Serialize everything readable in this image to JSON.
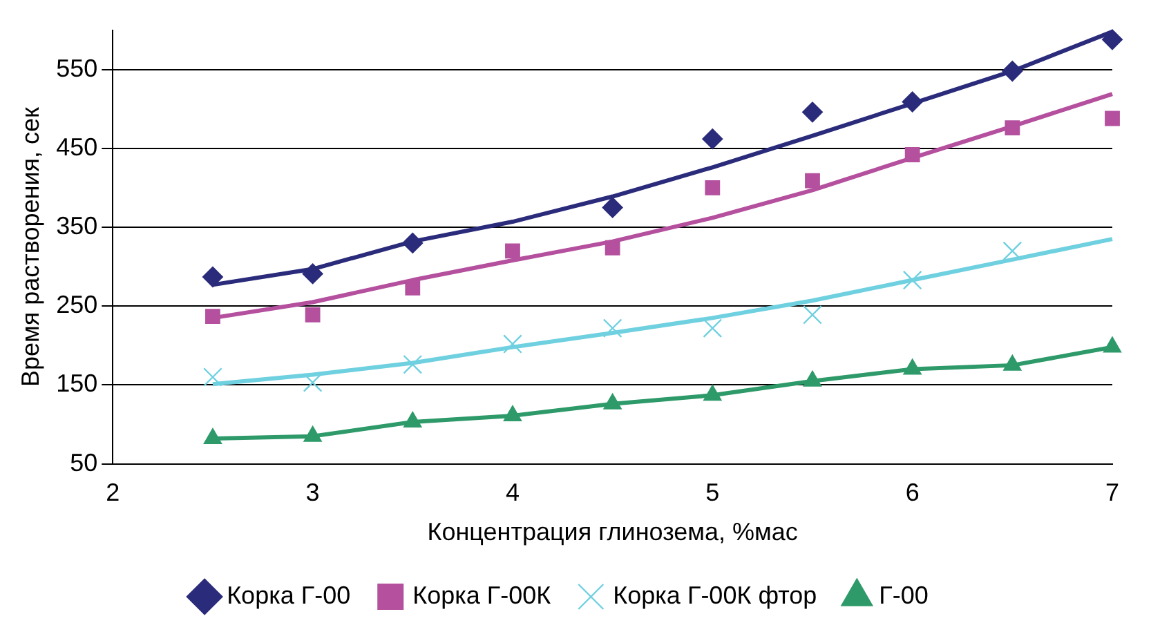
{
  "chart_data": {
    "type": "scatter",
    "xlabel": "Концентрация глинозема, %мас",
    "ylabel": "Время растворения, сек",
    "x": [
      2.5,
      3,
      3.5,
      4,
      4.5,
      5,
      5.5,
      6,
      6.5,
      7
    ],
    "xlim": [
      2,
      7
    ],
    "xticks": [
      2,
      3,
      4,
      5,
      6,
      7
    ],
    "ylim": [
      50,
      600
    ],
    "yticks": [
      50,
      150,
      250,
      350,
      450,
      550
    ],
    "grid": "y",
    "legend": "bottom",
    "series": [
      {
        "name": "Корка Г-00",
        "type": "scatter",
        "marker": "diamond",
        "color": "#2b2b7b",
        "values": [
          287,
          291,
          330,
          null,
          375,
          462,
          496,
          509,
          548,
          588
        ]
      },
      {
        "name": "Корка Г-00К",
        "type": "scatter",
        "marker": "square",
        "color": "#b4509e",
        "values": [
          237,
          239,
          273,
          320,
          324,
          400,
          409,
          442,
          476,
          488
        ]
      },
      {
        "name": "Корка Г-00К фтор",
        "type": "scatter",
        "marker": "cross",
        "color": "#6fd0e0",
        "values": [
          160,
          153,
          176,
          202,
          222,
          222,
          239,
          283,
          320,
          null
        ]
      },
      {
        "name": "Г-00",
        "type": "line",
        "marker": "triangle",
        "color": "#2e9a6a",
        "values": [
          82,
          85,
          103,
          111,
          126,
          137,
          155,
          170,
          175,
          198
        ]
      },
      {
        "type": "line",
        "marker": "none",
        "color": "#2b2b7b",
        "values": [
          277,
          297,
          332,
          357,
          389,
          426,
          466,
          507,
          548,
          598
        ]
      },
      {
        "type": "line",
        "marker": "none",
        "color": "#b4509e",
        "values": [
          235,
          255,
          283,
          308,
          332,
          362,
          397,
          438,
          478,
          519
        ]
      },
      {
        "type": "line",
        "marker": "none",
        "color": "#6fd0e0",
        "values": [
          151,
          163,
          178,
          198,
          216,
          235,
          257,
          283,
          309,
          335
        ]
      }
    ]
  }
}
